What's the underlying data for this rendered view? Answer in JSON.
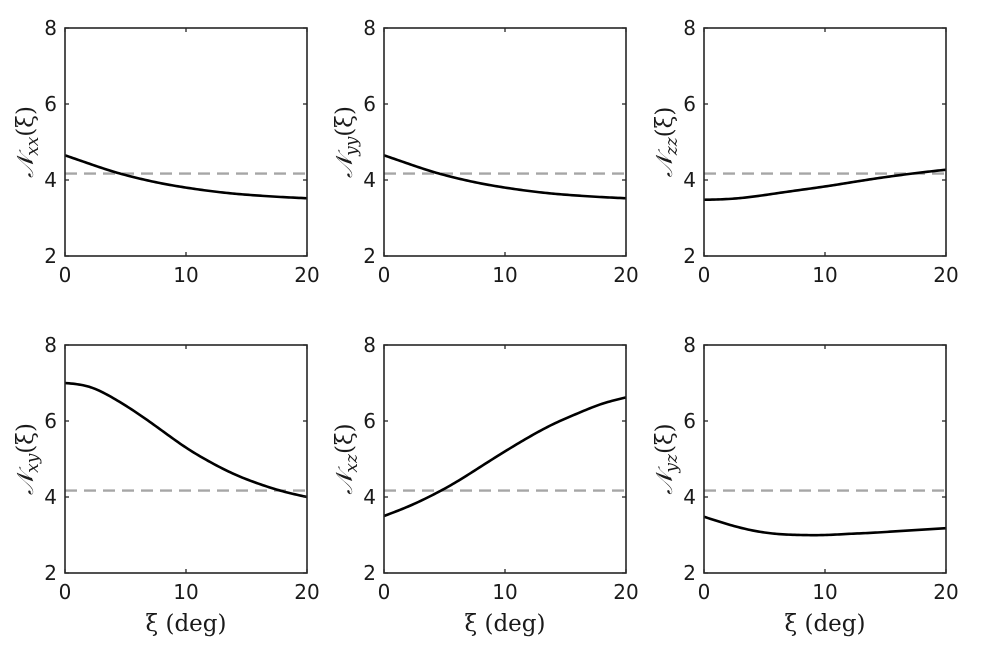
{
  "chart_data": [
    {
      "type": "line",
      "ylabel": "𝒩xx(ξ)",
      "xlabel": "",
      "xlim": [
        0,
        20
      ],
      "ylim": [
        2,
        8
      ],
      "xticks": [
        "0",
        "10",
        "20"
      ],
      "yticks": [
        "2",
        "4",
        "6",
        "8"
      ],
      "reference_y": 4.17,
      "reference_color": "#a6a6a6",
      "series": [
        {
          "x": [
            0,
            2,
            4,
            6,
            8,
            10,
            12,
            14,
            16,
            18,
            20
          ],
          "y": [
            4.65,
            4.43,
            4.22,
            4.05,
            3.91,
            3.8,
            3.71,
            3.64,
            3.59,
            3.55,
            3.52
          ]
        }
      ]
    },
    {
      "type": "line",
      "ylabel": "𝒩yy(ξ)",
      "xlabel": "",
      "xlim": [
        0,
        20
      ],
      "ylim": [
        2,
        8
      ],
      "xticks": [
        "0",
        "10",
        "20"
      ],
      "yticks": [
        "2",
        "4",
        "6",
        "8"
      ],
      "reference_y": 4.17,
      "reference_color": "#a6a6a6",
      "series": [
        {
          "x": [
            0,
            2,
            4,
            6,
            8,
            10,
            12,
            14,
            16,
            18,
            20
          ],
          "y": [
            4.65,
            4.43,
            4.22,
            4.05,
            3.91,
            3.8,
            3.71,
            3.64,
            3.59,
            3.55,
            3.52
          ]
        }
      ]
    },
    {
      "type": "line",
      "ylabel": "𝒩zz(ξ)",
      "xlabel": "",
      "xlim": [
        0,
        20
      ],
      "ylim": [
        2,
        8
      ],
      "xticks": [
        "0",
        "10",
        "20"
      ],
      "yticks": [
        "2",
        "4",
        "6",
        "8"
      ],
      "reference_y": 4.17,
      "reference_color": "#a6a6a6",
      "series": [
        {
          "x": [
            0,
            2,
            4,
            6,
            8,
            10,
            12,
            14,
            16,
            18,
            20
          ],
          "y": [
            3.48,
            3.5,
            3.56,
            3.65,
            3.74,
            3.83,
            3.93,
            4.03,
            4.12,
            4.2,
            4.27
          ]
        }
      ]
    },
    {
      "type": "line",
      "ylabel": "𝒩xy(ξ)",
      "xlabel": "ξ (deg)",
      "xlim": [
        0,
        20
      ],
      "ylim": [
        2,
        8
      ],
      "xticks": [
        "0",
        "10",
        "20"
      ],
      "yticks": [
        "2",
        "4",
        "6",
        "8"
      ],
      "reference_y": 4.17,
      "reference_color": "#a6a6a6",
      "series": [
        {
          "x": [
            0,
            2,
            4,
            6,
            8,
            10,
            12,
            14,
            16,
            18,
            20
          ],
          "y": [
            7.0,
            6.9,
            6.6,
            6.2,
            5.75,
            5.3,
            4.92,
            4.6,
            4.35,
            4.15,
            4.0
          ]
        }
      ]
    },
    {
      "type": "line",
      "ylabel": "𝒩xz(ξ)",
      "xlabel": "ξ (deg)",
      "xlim": [
        0,
        20
      ],
      "ylim": [
        2,
        8
      ],
      "xticks": [
        "0",
        "10",
        "20"
      ],
      "yticks": [
        "2",
        "4",
        "6",
        "8"
      ],
      "reference_y": 4.17,
      "reference_color": "#a6a6a6",
      "series": [
        {
          "x": [
            0,
            2,
            4,
            6,
            8,
            10,
            12,
            14,
            16,
            18,
            20
          ],
          "y": [
            3.5,
            3.75,
            4.05,
            4.4,
            4.8,
            5.2,
            5.58,
            5.92,
            6.2,
            6.45,
            6.62
          ]
        }
      ]
    },
    {
      "type": "line",
      "ylabel": "𝒩yz(ξ)",
      "xlabel": "ξ (deg)",
      "xlim": [
        0,
        20
      ],
      "ylim": [
        2,
        8
      ],
      "xticks": [
        "0",
        "10",
        "20"
      ],
      "yticks": [
        "2",
        "4",
        "6",
        "8"
      ],
      "reference_y": 4.17,
      "reference_color": "#a6a6a6",
      "series": [
        {
          "x": [
            0,
            2,
            4,
            6,
            8,
            10,
            12,
            14,
            16,
            18,
            20
          ],
          "y": [
            3.48,
            3.28,
            3.12,
            3.03,
            3.0,
            3.0,
            3.03,
            3.06,
            3.1,
            3.14,
            3.18
          ]
        }
      ]
    }
  ]
}
